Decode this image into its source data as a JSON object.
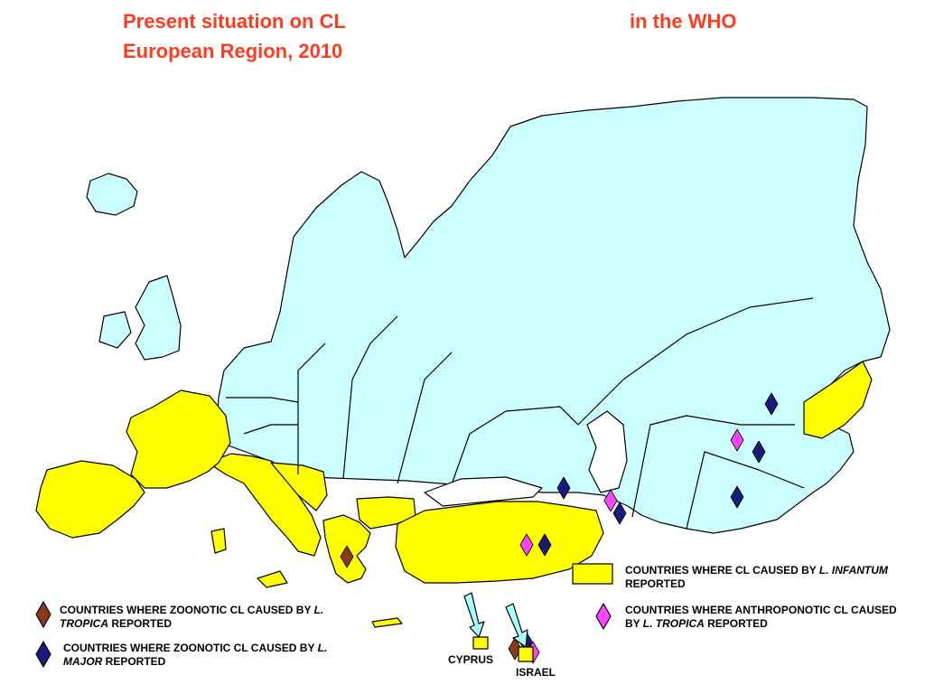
{
  "title": {
    "line1": "Present situation on CL",
    "line1_right": "in the WHO",
    "line2": "European Region, 2010"
  },
  "legend": {
    "infantum": {
      "pre": "COUNTRIES WHERE CL CAUSED  BY ",
      "species": "L. INFANTUM",
      "post": " REPORTED",
      "swatch_color": "#ffff00"
    },
    "anthroponotic_tropica": {
      "pre": "COUNTRIES WHERE ANTHROPONOTIC CL CAUSED BY ",
      "species": "L. TROPICA",
      "post": " REPORTED",
      "marker_color": "#ff44ff"
    },
    "zoonotic_tropica": {
      "pre": "COUNTRIES WHERE ZOONOTIC CL CAUSED BY ",
      "species": "L. TROPICA",
      "post": "  REPORTED",
      "marker_color": "#8b3a1a"
    },
    "zoonotic_major": {
      "pre": "COUNTRIES WHERE ZOONOTIC CL CAUSED BY ",
      "species": "L. MAJOR",
      "post": "  REPORTED",
      "marker_color": "#1a1a7a"
    }
  },
  "labels": {
    "cyprus": "CYPRUS",
    "israel": "ISRAEL"
  },
  "colors": {
    "sea": "#ffffff",
    "region": "#ccffff",
    "infantum": "#ffff00",
    "arrow": "#aaffff"
  },
  "markers": [
    {
      "country": "Greece",
      "type": "zoonotic_tropica"
    },
    {
      "country": "Turkey",
      "type": "anthroponotic_tropica"
    },
    {
      "country": "Turkey",
      "type": "zoonotic_major"
    },
    {
      "country": "Georgia",
      "type": "zoonotic_major"
    },
    {
      "country": "Azerbaijan",
      "type": "anthroponotic_tropica"
    },
    {
      "country": "Azerbaijan",
      "type": "zoonotic_major"
    },
    {
      "country": "Kazakhstan",
      "type": "zoonotic_major"
    },
    {
      "country": "Uzbekistan",
      "type": "anthroponotic_tropica"
    },
    {
      "country": "Uzbekistan",
      "type": "zoonotic_major"
    },
    {
      "country": "Turkmenistan",
      "type": "zoonotic_major"
    },
    {
      "country": "Israel",
      "type": "zoonotic_tropica"
    },
    {
      "country": "Israel",
      "type": "zoonotic_major"
    },
    {
      "country": "Israel",
      "type": "anthroponotic_tropica"
    }
  ]
}
